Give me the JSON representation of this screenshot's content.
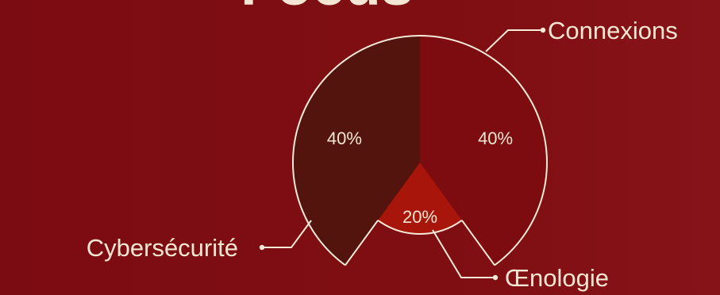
{
  "header": {
    "title": "Focus",
    "title_color": "#f3e7d3"
  },
  "chart_data": {
    "type": "pie",
    "title": "Focus",
    "slices": [
      {
        "name": "Connexions",
        "value": 40,
        "label": "40%",
        "color": "#7d0c10"
      },
      {
        "name": "Œnologie",
        "value": 20,
        "label": "20%",
        "color": "#a8150a"
      },
      {
        "name": "Cybersécurité",
        "value": 40,
        "label": "40%",
        "color": "#54140e"
      }
    ],
    "outline_color": "#f4ead8",
    "label_color": "#f3e7d3",
    "background_color": "#7b0c11"
  }
}
